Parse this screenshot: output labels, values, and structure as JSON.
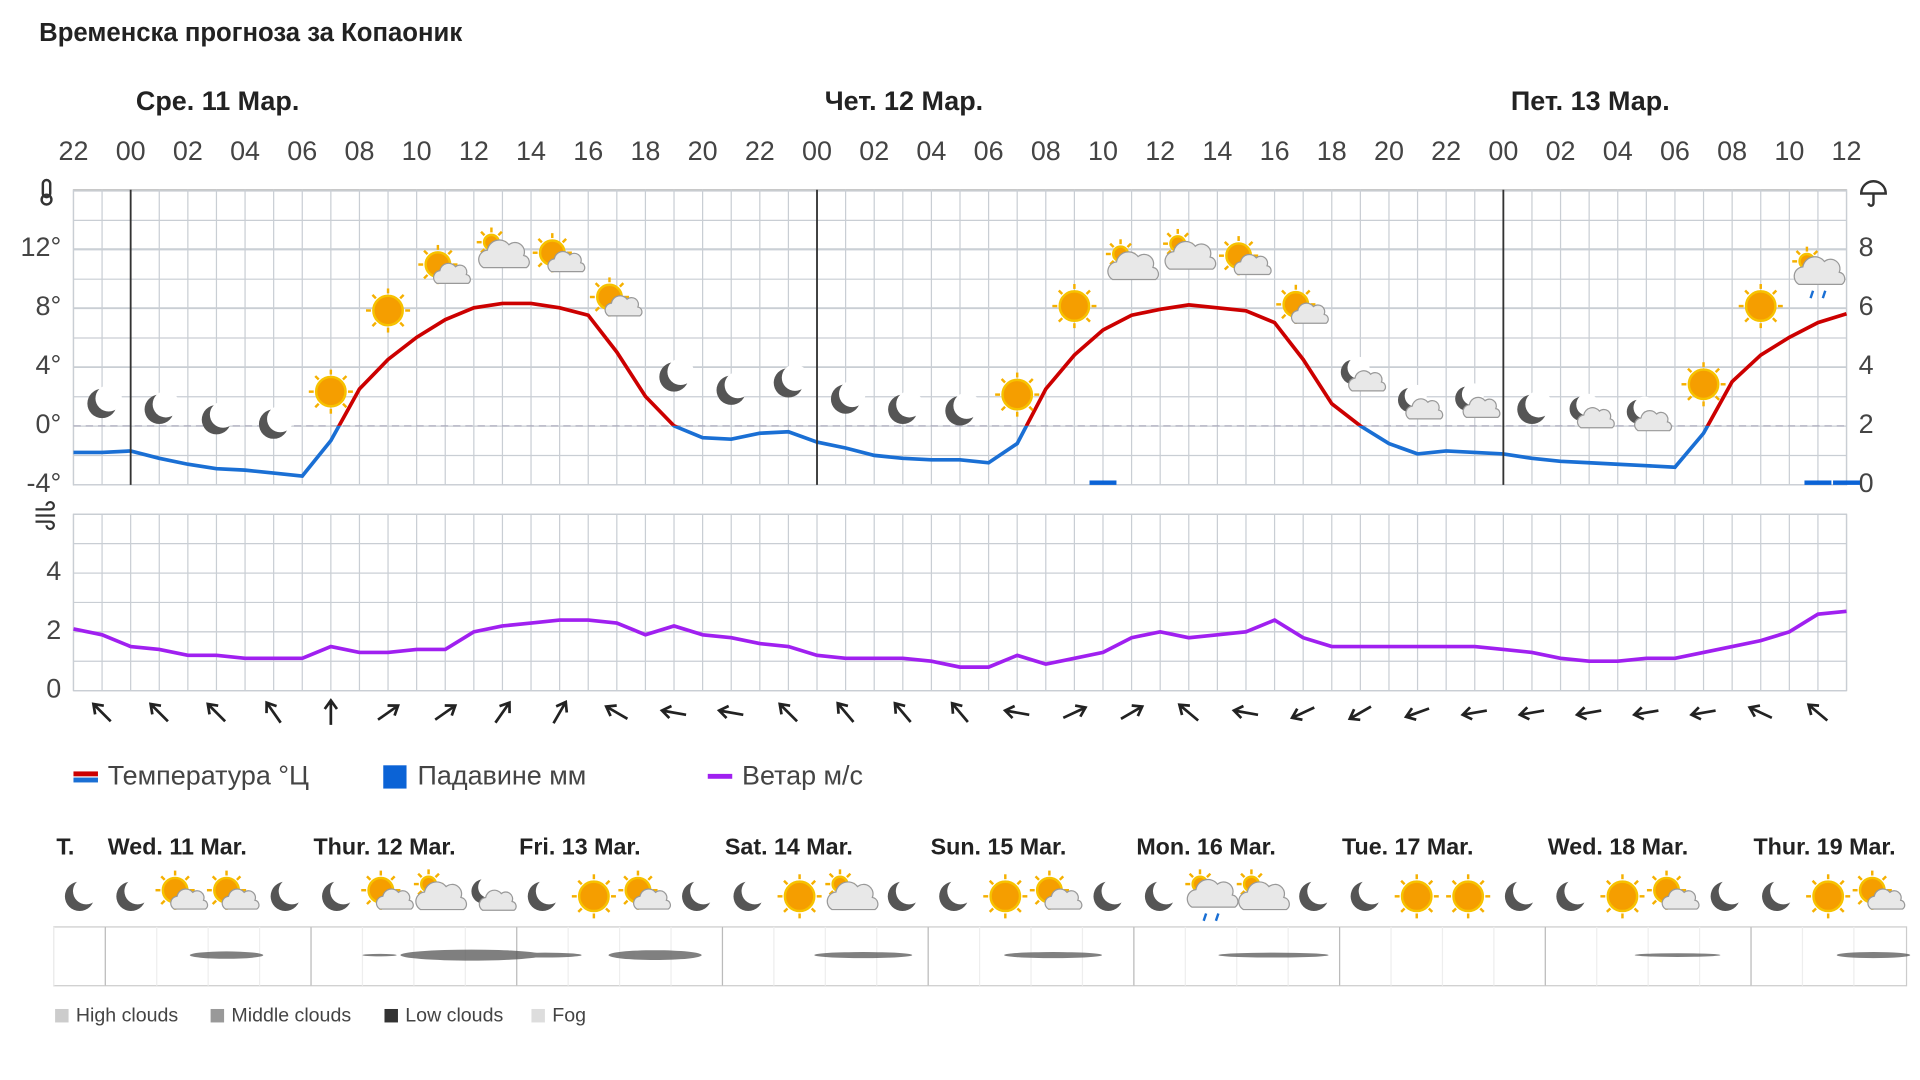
{
  "title": "Временска прогноза за Копаоник",
  "chart_data": [
    {
      "type": "line",
      "day_labels": [
        {
          "value": 2,
          "label": "Сре. 11 Мар."
        },
        {
          "value": 26,
          "label": "Чет. 12 Мар."
        },
        {
          "value": 50,
          "label": "Пет. 13 Мар."
        }
      ],
      "x": [
        0,
        1,
        2,
        3,
        4,
        5,
        6,
        7,
        8,
        9,
        10,
        11,
        12,
        13,
        14,
        15,
        16,
        17,
        18,
        19,
        20,
        21,
        22,
        23,
        24,
        25,
        26,
        27,
        28,
        29,
        30,
        31,
        32,
        33,
        34,
        35,
        36,
        37,
        38,
        39,
        40,
        41,
        42,
        43,
        44,
        45,
        46,
        47,
        48,
        49,
        50,
        51,
        52,
        53,
        54,
        55,
        56,
        57,
        58,
        59,
        60,
        61,
        62
      ],
      "xlim": [
        0,
        62
      ],
      "xticks": [
        {
          "value": 0,
          "label": "22"
        },
        {
          "value": 2,
          "label": "00"
        },
        {
          "value": 4,
          "label": "02"
        },
        {
          "value": 6,
          "label": "04"
        },
        {
          "value": 8,
          "label": "06"
        },
        {
          "value": 10,
          "label": "08"
        },
        {
          "value": 12,
          "label": "10"
        },
        {
          "value": 14,
          "label": "12"
        },
        {
          "value": 16,
          "label": "14"
        },
        {
          "value": 18,
          "label": "16"
        },
        {
          "value": 20,
          "label": "18"
        },
        {
          "value": 22,
          "label": "20"
        },
        {
          "value": 24,
          "label": "22"
        },
        {
          "value": 26,
          "label": "00"
        },
        {
          "value": 28,
          "label": "02"
        },
        {
          "value": 30,
          "label": "04"
        },
        {
          "value": 32,
          "label": "06"
        },
        {
          "value": 34,
          "label": "08"
        },
        {
          "value": 36,
          "label": "10"
        },
        {
          "value": 38,
          "label": "12"
        },
        {
          "value": 40,
          "label": "14"
        },
        {
          "value": 42,
          "label": "16"
        },
        {
          "value": 44,
          "label": "18"
        },
        {
          "value": 46,
          "label": "20"
        },
        {
          "value": 48,
          "label": "22"
        },
        {
          "value": 50,
          "label": "00"
        },
        {
          "value": 52,
          "label": "02"
        },
        {
          "value": 54,
          "label": "04"
        },
        {
          "value": 56,
          "label": "06"
        },
        {
          "value": 58,
          "label": "08"
        },
        {
          "value": 60,
          "label": "10"
        },
        {
          "value": 62,
          "label": "12"
        }
      ],
      "ylim": [
        -4,
        16
      ],
      "yticks": [
        {
          "value": -4,
          "label": "-4°"
        },
        {
          "value": 0,
          "label": "0°"
        },
        {
          "value": 4,
          "label": "4°"
        },
        {
          "value": 8,
          "label": "8°"
        },
        {
          "value": 12,
          "label": "12°"
        }
      ],
      "y2lim": [
        0,
        10
      ],
      "y2ticks": [
        0,
        2,
        4,
        6,
        8
      ],
      "series": [
        {
          "name": "Температура °Ц",
          "color": "#cc0000",
          "color_below_zero": "#1a6fd4",
          "values": [
            -1.8,
            -1.8,
            -1.7,
            -2.2,
            -2.6,
            -2.9,
            -3.0,
            -3.2,
            -3.4,
            -1.0,
            2.5,
            4.5,
            6.0,
            7.2,
            8.0,
            8.3,
            8.3,
            8.0,
            7.5,
            5.0,
            2.0,
            0.0,
            -0.8,
            -0.9,
            -0.5,
            -0.4,
            -1.1,
            -1.5,
            -2.0,
            -2.2,
            -2.3,
            -2.3,
            -2.5,
            -1.2,
            2.5,
            4.8,
            6.5,
            7.5,
            7.9,
            8.2,
            8.0,
            7.8,
            7.0,
            4.5,
            1.5,
            0.0,
            -1.2,
            -1.9,
            -1.7,
            -1.8,
            -1.9,
            -2.2,
            -2.4,
            -2.5,
            -2.6,
            -2.7,
            -2.8,
            -0.5,
            3.0,
            4.8,
            6.0,
            7.0,
            7.6
          ]
        },
        {
          "name": "Падавине мм",
          "type": "bar",
          "axis": "y2",
          "color": "#0b63d6",
          "x": [
            36,
            61,
            62
          ],
          "values": [
            0.15,
            0.15,
            0.15
          ]
        }
      ],
      "symbols": {
        "x": [
          1,
          3,
          5,
          7,
          9,
          11,
          13,
          15,
          17,
          19,
          21,
          23,
          25,
          27,
          29,
          31,
          33,
          35,
          37,
          39,
          41,
          43,
          45,
          47,
          49,
          51,
          53,
          55,
          57,
          59,
          61
        ],
        "values": [
          "moon",
          "moon",
          "moon",
          "moon",
          "sun",
          "sun",
          "partly",
          "cloudy-sun",
          "partly",
          "partly",
          "moon",
          "moon",
          "moon",
          "moon",
          "moon",
          "moon",
          "sun",
          "sun",
          "cloudy-sun",
          "cloudy-sun",
          "partly",
          "partly",
          "moon-cloud",
          "moon-cloud",
          "moon-cloud",
          "moon",
          "moon-cloud",
          "moon-cloud",
          "sun",
          "sun",
          "rain"
        ]
      }
    },
    {
      "type": "line",
      "x": [
        0,
        1,
        2,
        3,
        4,
        5,
        6,
        7,
        8,
        9,
        10,
        11,
        12,
        13,
        14,
        15,
        16,
        17,
        18,
        19,
        20,
        21,
        22,
        23,
        24,
        25,
        26,
        27,
        28,
        29,
        30,
        31,
        32,
        33,
        34,
        35,
        36,
        37,
        38,
        39,
        40,
        41,
        42,
        43,
        44,
        45,
        46,
        47,
        48,
        49,
        50,
        51,
        52,
        53,
        54,
        55,
        56,
        57,
        58,
        59,
        60,
        61,
        62
      ],
      "xlim": [
        0,
        62
      ],
      "ylim": [
        0,
        6
      ],
      "yticks": [
        0,
        2,
        4
      ],
      "series": [
        {
          "name": "Ветар м/с",
          "color": "#a020f0",
          "values": [
            2.1,
            1.9,
            1.5,
            1.4,
            1.2,
            1.2,
            1.1,
            1.1,
            1.1,
            1.5,
            1.3,
            1.3,
            1.4,
            1.4,
            2.0,
            2.2,
            2.3,
            2.4,
            2.4,
            2.3,
            1.9,
            2.2,
            1.9,
            1.8,
            1.6,
            1.5,
            1.2,
            1.1,
            1.1,
            1.1,
            1.0,
            0.8,
            0.8,
            1.2,
            0.9,
            1.1,
            1.3,
            1.8,
            2.0,
            1.8,
            1.9,
            2.0,
            2.4,
            1.8,
            1.5,
            1.5,
            1.5,
            1.5,
            1.5,
            1.5,
            1.4,
            1.3,
            1.1,
            1.0,
            1.0,
            1.1,
            1.1,
            1.3,
            1.5,
            1.7,
            2.0,
            2.6,
            2.7
          ]
        }
      ],
      "wind_direction": {
        "x": [
          1,
          3,
          5,
          7,
          9,
          11,
          13,
          15,
          17,
          19,
          21,
          23,
          25,
          27,
          29,
          31,
          33,
          35,
          37,
          39,
          41,
          43,
          45,
          47,
          49,
          51,
          53,
          55,
          57,
          59,
          61
        ],
        "values": [
          -45,
          -45,
          -45,
          -35,
          0,
          55,
          55,
          35,
          30,
          -60,
          -80,
          -80,
          -45,
          -40,
          -40,
          -40,
          -80,
          65,
          60,
          -50,
          -80,
          -115,
          -120,
          -110,
          -100,
          -100,
          -100,
          -100,
          -100,
          -65,
          -50
        ]
      }
    }
  ],
  "forecast_strip": {
    "days": [
      "T.",
      "Wed. 11 Mar.",
      "Thur. 12 Mar.",
      "Fri. 13 Mar.",
      "Sat. 14 Mar.",
      "Sun. 15 Mar.",
      "Mon. 16 Mar.",
      "Tue. 17 Mar.",
      "Wed. 18 Mar.",
      "Thur. 19 Mar."
    ],
    "symbols": [
      "moon",
      "moon",
      "partly",
      "partly",
      "moon",
      "moon",
      "partly",
      "cloudy-sun",
      "moon-cloud",
      "moon",
      "sun",
      "partly",
      "moon",
      "moon",
      "sun",
      "cloudy-sun",
      "moon",
      "moon",
      "sun",
      "partly",
      "moon",
      "moon",
      "rain",
      "cloudy-sun",
      "moon",
      "moon",
      "sun",
      "sun",
      "moon",
      "moon",
      "sun",
      "partly",
      "moon",
      "moon",
      "sun",
      "partly"
    ],
    "cloud_legend": [
      "High clouds",
      "Middle clouds",
      "Low clouds",
      "Fog"
    ]
  }
}
